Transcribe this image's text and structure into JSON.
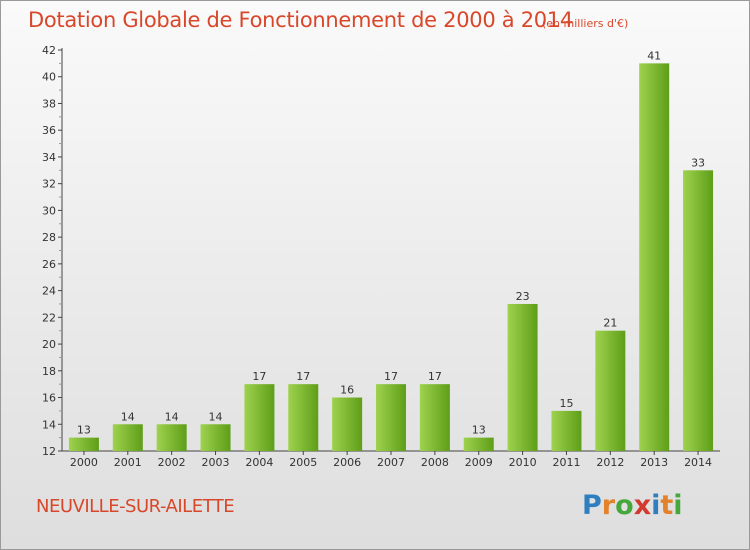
{
  "header": {
    "title": "Dotation Globale de Fonctionnement de 2000 à 2014",
    "unit_note": "(en milliers d'€)"
  },
  "footer": {
    "commune": "NEUVILLE-SUR-AILETTE",
    "logo": [
      "P",
      "r",
      "o",
      "x",
      "i",
      "t",
      "i"
    ],
    "logo_colors": [
      "#2f7fc0",
      "#e3822a",
      "#46a83c",
      "#d23a2f",
      "#2f7fc0",
      "#e3822a",
      "#46a83c"
    ]
  },
  "colors": {
    "title": "#d9472a",
    "bar_light": "#9fd24e",
    "bar_dark": "#5e9e18",
    "axis": "#444444",
    "grid_dash": "#999999"
  },
  "chart_data": {
    "type": "bar",
    "title": "Dotation Globale de Fonctionnement de 2000 à 2014",
    "subtitle": "(en milliers d'€)",
    "categories": [
      "2000",
      "2001",
      "2002",
      "2003",
      "2004",
      "2005",
      "2006",
      "2007",
      "2008",
      "2009",
      "2010",
      "2011",
      "2012",
      "2013",
      "2014"
    ],
    "values": [
      13,
      14,
      14,
      14,
      17,
      17,
      16,
      17,
      17,
      13,
      23,
      15,
      21,
      41,
      33
    ],
    "ylim": [
      12,
      42
    ],
    "yticks": [
      12,
      14,
      16,
      18,
      20,
      22,
      24,
      26,
      28,
      30,
      32,
      34,
      36,
      38,
      40,
      42
    ],
    "xlabel": "",
    "ylabel": "",
    "grid": false,
    "data_labels": true
  }
}
